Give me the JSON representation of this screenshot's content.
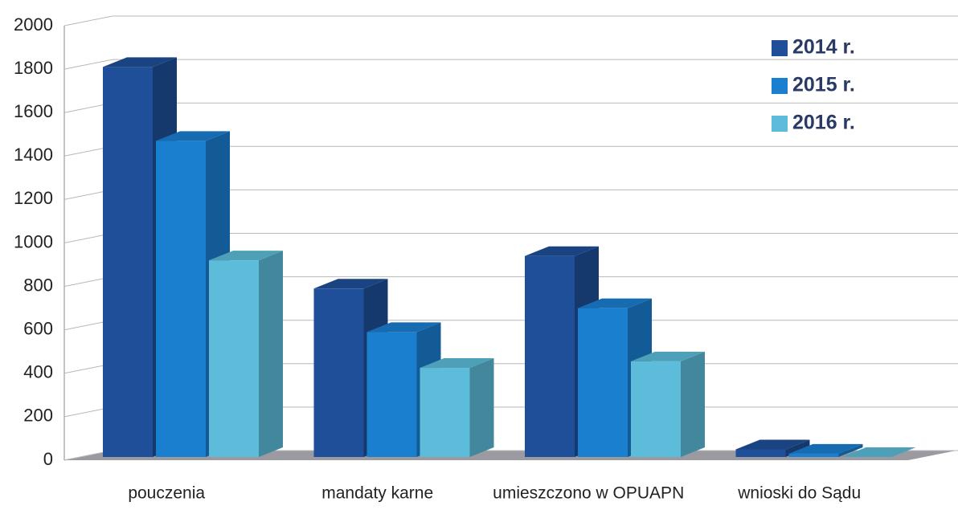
{
  "chart_data": {
    "type": "bar3d",
    "categories": [
      "pouczenia",
      "mandaty karne",
      "umieszczono w OPUAPN",
      "wnioski do Sądu"
    ],
    "series": [
      {
        "name": "2014 r.",
        "color": "#1f4f98",
        "values": [
          1810,
          790,
          940,
          50
        ]
      },
      {
        "name": "2015 r.",
        "color": "#1b7fd0",
        "values": [
          1470,
          590,
          700,
          30
        ]
      },
      {
        "name": "2016 r.",
        "color": "#5cbcd9",
        "values": [
          920,
          425,
          455,
          15
        ]
      }
    ],
    "ylim": [
      0,
      2000
    ],
    "yticks": [
      0,
      200,
      400,
      600,
      800,
      1000,
      1200,
      1400,
      1600,
      1800,
      2000
    ],
    "grid": true,
    "legend": "top-right"
  }
}
